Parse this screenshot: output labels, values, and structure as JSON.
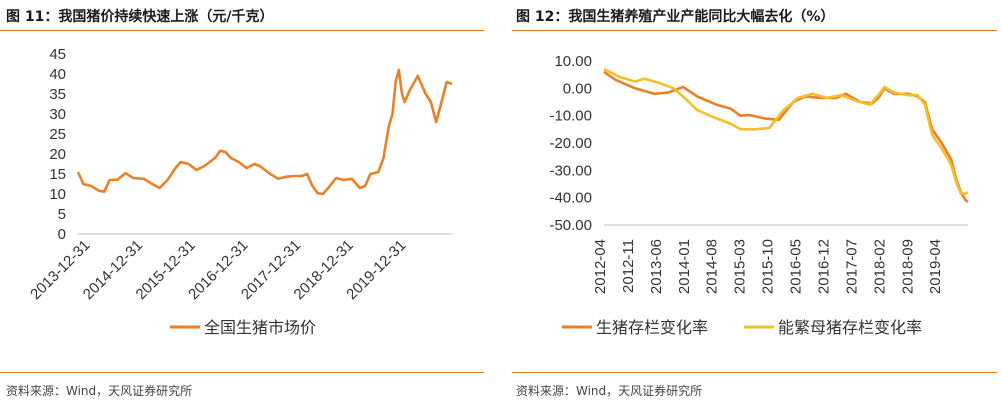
{
  "figures": [
    {
      "title": "图 11：我国猪价持续快速上涨（元/千克）",
      "source": "资料来源：Wind，天风证券研究所"
    },
    {
      "title": "图 12：我国生猪养殖产业产能同比大幅去化（%）",
      "source": "资料来源：Wind，天风证券研究所"
    }
  ],
  "chart_data": [
    {
      "type": "line",
      "title": "图 11：我国猪价持续快速上涨（元/千克）",
      "ylim": [
        0,
        45
      ],
      "yticks": [
        "0",
        "5",
        "10",
        "15",
        "20",
        "25",
        "30",
        "35",
        "40",
        "45"
      ],
      "xlim": [
        2013.75,
        2020.85
      ],
      "xticks": [
        "2013-12-31",
        "2014-12-31",
        "2015-12-31",
        "2016-12-31",
        "2017-12-31",
        "2018-12-31",
        "2019-12-31"
      ],
      "grid": false,
      "legend_position": "bottom",
      "series": [
        {
          "name": "全国生猪市场价",
          "color": "#e8812b",
          "points": [
            [
              2013.75,
              15.5
            ],
            [
              2013.85,
              12.5
            ],
            [
              2014.0,
              12.0
            ],
            [
              2014.15,
              10.8
            ],
            [
              2014.25,
              10.6
            ],
            [
              2014.35,
              13.5
            ],
            [
              2014.5,
              13.6
            ],
            [
              2014.65,
              15.2
            ],
            [
              2014.8,
              14.0
            ],
            [
              2015.0,
              13.8
            ],
            [
              2015.2,
              12.2
            ],
            [
              2015.3,
              11.5
            ],
            [
              2015.45,
              13.5
            ],
            [
              2015.6,
              16.5
            ],
            [
              2015.7,
              18.0
            ],
            [
              2015.85,
              17.5
            ],
            [
              2016.0,
              16.0
            ],
            [
              2016.15,
              17.0
            ],
            [
              2016.35,
              19.0
            ],
            [
              2016.45,
              20.8
            ],
            [
              2016.55,
              20.5
            ],
            [
              2016.65,
              19.0
            ],
            [
              2016.8,
              18.0
            ],
            [
              2016.95,
              16.5
            ],
            [
              2017.1,
              17.5
            ],
            [
              2017.2,
              17.0
            ],
            [
              2017.4,
              15.0
            ],
            [
              2017.55,
              13.8
            ],
            [
              2017.7,
              14.3
            ],
            [
              2017.85,
              14.5
            ],
            [
              2018.0,
              14.5
            ],
            [
              2018.1,
              15.0
            ],
            [
              2018.2,
              12.0
            ],
            [
              2018.3,
              10.2
            ],
            [
              2018.4,
              10.0
            ],
            [
              2018.5,
              11.5
            ],
            [
              2018.65,
              14.0
            ],
            [
              2018.8,
              13.5
            ],
            [
              2018.95,
              13.8
            ],
            [
              2019.1,
              11.5
            ],
            [
              2019.2,
              12.0
            ],
            [
              2019.3,
              15.0
            ],
            [
              2019.45,
              15.5
            ],
            [
              2019.55,
              19.0
            ],
            [
              2019.65,
              27.0
            ],
            [
              2019.72,
              30.0
            ],
            [
              2019.78,
              38.0
            ],
            [
              2019.84,
              41.0
            ],
            [
              2019.9,
              35.0
            ],
            [
              2019.95,
              33.0
            ],
            [
              2020.05,
              36.0
            ],
            [
              2020.2,
              39.5
            ],
            [
              2020.35,
              35.0
            ],
            [
              2020.45,
              33.0
            ],
            [
              2020.55,
              28.0
            ],
            [
              2020.65,
              33.0
            ],
            [
              2020.75,
              38.0
            ],
            [
              2020.85,
              37.5
            ]
          ]
        }
      ]
    },
    {
      "type": "line",
      "title": "图 12：我国生猪养殖产业产能同比大幅去化（%）",
      "ylim": [
        -50,
        10
      ],
      "yticks": [
        "10.00",
        "0.00",
        "-10.00",
        "-20.00",
        "-30.00",
        "-40.00",
        "-50.00"
      ],
      "xlim": [
        2012.25,
        2019.85
      ],
      "xticks": [
        "2012-04",
        "2012-11",
        "2013-06",
        "2014-01",
        "2014-08",
        "2015-03",
        "2015-10",
        "2016-05",
        "2016-12",
        "2017-07",
        "2018-02",
        "2018-09",
        "2019-04"
      ],
      "grid": false,
      "legend_position": "bottom",
      "series": [
        {
          "name": "生猪存栏变化率",
          "color": "#e8812b",
          "points": [
            [
              2012.25,
              6.0
            ],
            [
              2012.5,
              3.0
            ],
            [
              2012.9,
              0.0
            ],
            [
              2013.3,
              -2.0
            ],
            [
              2013.6,
              -1.5
            ],
            [
              2013.9,
              0.5
            ],
            [
              2014.2,
              -3.0
            ],
            [
              2014.6,
              -6.0
            ],
            [
              2014.9,
              -7.5
            ],
            [
              2015.1,
              -10.0
            ],
            [
              2015.3,
              -9.8
            ],
            [
              2015.6,
              -11.0
            ],
            [
              2015.9,
              -11.5
            ],
            [
              2016.2,
              -5.0
            ],
            [
              2016.45,
              -3.0
            ],
            [
              2016.8,
              -3.5
            ],
            [
              2017.1,
              -3.5
            ],
            [
              2017.3,
              -2.0
            ],
            [
              2017.6,
              -5.0
            ],
            [
              2017.85,
              -5.5
            ],
            [
              2018.0,
              -3.0
            ],
            [
              2018.1,
              0.0
            ],
            [
              2018.3,
              -2.0
            ],
            [
              2018.6,
              -2.0
            ],
            [
              2018.8,
              -3.0
            ],
            [
              2018.95,
              -5.0
            ],
            [
              2019.1,
              -15.0
            ],
            [
              2019.3,
              -20.0
            ],
            [
              2019.5,
              -26.0
            ],
            [
              2019.6,
              -33.0
            ],
            [
              2019.7,
              -38.0
            ],
            [
              2019.8,
              -41.0
            ],
            [
              2019.85,
              -41.5
            ]
          ]
        },
        {
          "name": "能繁母猪存栏变化率",
          "color": "#f3bf2e",
          "points": [
            [
              2012.25,
              7.0
            ],
            [
              2012.6,
              4.0
            ],
            [
              2012.9,
              2.5
            ],
            [
              2013.1,
              3.5
            ],
            [
              2013.4,
              2.0
            ],
            [
              2013.7,
              0.0
            ],
            [
              2013.9,
              -3.0
            ],
            [
              2014.2,
              -8.0
            ],
            [
              2014.6,
              -11.0
            ],
            [
              2014.9,
              -13.0
            ],
            [
              2015.1,
              -15.0
            ],
            [
              2015.4,
              -15.0
            ],
            [
              2015.7,
              -14.5
            ],
            [
              2016.0,
              -8.0
            ],
            [
              2016.3,
              -3.5
            ],
            [
              2016.6,
              -2.0
            ],
            [
              2016.9,
              -3.5
            ],
            [
              2017.2,
              -2.5
            ],
            [
              2017.5,
              -4.5
            ],
            [
              2017.8,
              -6.0
            ],
            [
              2018.0,
              -2.0
            ],
            [
              2018.1,
              0.5
            ],
            [
              2018.3,
              -1.5
            ],
            [
              2018.6,
              -2.5
            ],
            [
              2018.8,
              -2.5
            ],
            [
              2018.95,
              -6.0
            ],
            [
              2019.1,
              -17.0
            ],
            [
              2019.3,
              -22.0
            ],
            [
              2019.5,
              -28.0
            ],
            [
              2019.6,
              -34.0
            ],
            [
              2019.7,
              -38.5
            ],
            [
              2019.8,
              -38.5
            ],
            [
              2019.85,
              -38.0
            ]
          ]
        }
      ]
    }
  ]
}
